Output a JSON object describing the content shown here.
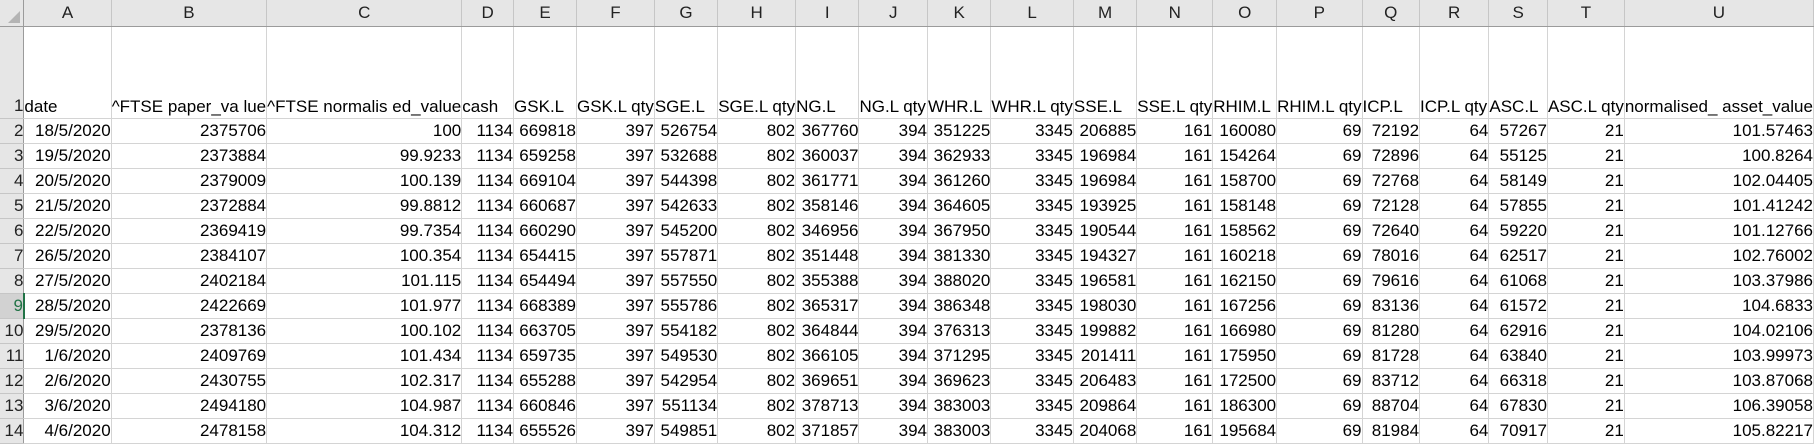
{
  "columns": [
    "A",
    "B",
    "C",
    "D",
    "E",
    "F",
    "G",
    "H",
    "I",
    "J",
    "K",
    "L",
    "M",
    "N",
    "O",
    "P",
    "Q",
    "R",
    "S",
    "T",
    "U"
  ],
  "header_row": {
    "row_number": "1",
    "cells": [
      "date",
      "^FTSE paper_va lue",
      "^FTSE normalis ed_value",
      "cash",
      "GSK.L",
      "GSK.L qty",
      "SGE.L",
      "SGE.L qty",
      "NG.L",
      "NG.L qty",
      "WHR.L",
      "WHR.L qty",
      "SSE.L",
      "SSE.L qty",
      "RHIM.L",
      "RHIM.L qty",
      "ICP.L",
      "ICP.L qty",
      "ASC.L",
      "ASC.L qty",
      "normalised_ asset_value"
    ]
  },
  "rows": [
    {
      "n": "2",
      "cells": [
        "18/5/2020",
        "2375706",
        "100",
        "1134",
        "669818",
        "397",
        "526754",
        "802",
        "367760",
        "394",
        "351225",
        "3345",
        "206885",
        "161",
        "160080",
        "69",
        "72192",
        "64",
        "57267",
        "21",
        "101.57463"
      ]
    },
    {
      "n": "3",
      "cells": [
        "19/5/2020",
        "2373884",
        "99.9233",
        "1134",
        "659258",
        "397",
        "532688",
        "802",
        "360037",
        "394",
        "362933",
        "3345",
        "196984",
        "161",
        "154264",
        "69",
        "72896",
        "64",
        "55125",
        "21",
        "100.8264"
      ]
    },
    {
      "n": "4",
      "cells": [
        "20/5/2020",
        "2379009",
        "100.139",
        "1134",
        "669104",
        "397",
        "544398",
        "802",
        "361771",
        "394",
        "361260",
        "3345",
        "196984",
        "161",
        "158700",
        "69",
        "72768",
        "64",
        "58149",
        "21",
        "102.04405"
      ]
    },
    {
      "n": "5",
      "cells": [
        "21/5/2020",
        "2372884",
        "99.8812",
        "1134",
        "660687",
        "397",
        "542633",
        "802",
        "358146",
        "394",
        "364605",
        "3345",
        "193925",
        "161",
        "158148",
        "69",
        "72128",
        "64",
        "57855",
        "21",
        "101.41242"
      ]
    },
    {
      "n": "6",
      "cells": [
        "22/5/2020",
        "2369419",
        "99.7354",
        "1134",
        "660290",
        "397",
        "545200",
        "802",
        "346956",
        "394",
        "367950",
        "3345",
        "190544",
        "161",
        "158562",
        "69",
        "72640",
        "64",
        "59220",
        "21",
        "101.12766"
      ]
    },
    {
      "n": "7",
      "cells": [
        "26/5/2020",
        "2384107",
        "100.354",
        "1134",
        "654415",
        "397",
        "557871",
        "802",
        "351448",
        "394",
        "381330",
        "3345",
        "194327",
        "161",
        "160218",
        "69",
        "78016",
        "64",
        "62517",
        "21",
        "102.76002"
      ]
    },
    {
      "n": "8",
      "cells": [
        "27/5/2020",
        "2402184",
        "101.115",
        "1134",
        "654494",
        "397",
        "557550",
        "802",
        "355388",
        "394",
        "388020",
        "3345",
        "196581",
        "161",
        "162150",
        "69",
        "79616",
        "64",
        "61068",
        "21",
        "103.37986"
      ]
    },
    {
      "n": "9",
      "cells": [
        "28/5/2020",
        "2422669",
        "101.977",
        "1134",
        "668389",
        "397",
        "555786",
        "802",
        "365317",
        "394",
        "386348",
        "3345",
        "198030",
        "161",
        "167256",
        "69",
        "83136",
        "64",
        "61572",
        "21",
        "104.6833"
      ],
      "selected": true
    },
    {
      "n": "10",
      "cells": [
        "29/5/2020",
        "2378136",
        "100.102",
        "1134",
        "663705",
        "397",
        "554182",
        "802",
        "364844",
        "394",
        "376313",
        "3345",
        "199882",
        "161",
        "166980",
        "69",
        "81280",
        "64",
        "62916",
        "21",
        "104.02106"
      ]
    },
    {
      "n": "11",
      "cells": [
        "1/6/2020",
        "2409769",
        "101.434",
        "1134",
        "659735",
        "397",
        "549530",
        "802",
        "366105",
        "394",
        "371295",
        "3345",
        "201411",
        "161",
        "175950",
        "69",
        "81728",
        "64",
        "63840",
        "21",
        "103.99973"
      ]
    },
    {
      "n": "12",
      "cells": [
        "2/6/2020",
        "2430755",
        "102.317",
        "1134",
        "655288",
        "397",
        "542954",
        "802",
        "369651",
        "394",
        "369623",
        "3345",
        "206483",
        "161",
        "172500",
        "69",
        "83712",
        "64",
        "66318",
        "21",
        "103.87068"
      ]
    },
    {
      "n": "13",
      "cells": [
        "3/6/2020",
        "2494180",
        "104.987",
        "1134",
        "660846",
        "397",
        "551134",
        "802",
        "378713",
        "394",
        "383003",
        "3345",
        "209864",
        "161",
        "186300",
        "69",
        "88704",
        "64",
        "67830",
        "21",
        "106.39058"
      ]
    },
    {
      "n": "14",
      "cells": [
        "4/6/2020",
        "2478158",
        "104.312",
        "1134",
        "655526",
        "397",
        "549851",
        "802",
        "371857",
        "394",
        "383003",
        "3345",
        "204068",
        "161",
        "195684",
        "69",
        "81984",
        "64",
        "70917",
        "21",
        "105.82217"
      ]
    }
  ]
}
